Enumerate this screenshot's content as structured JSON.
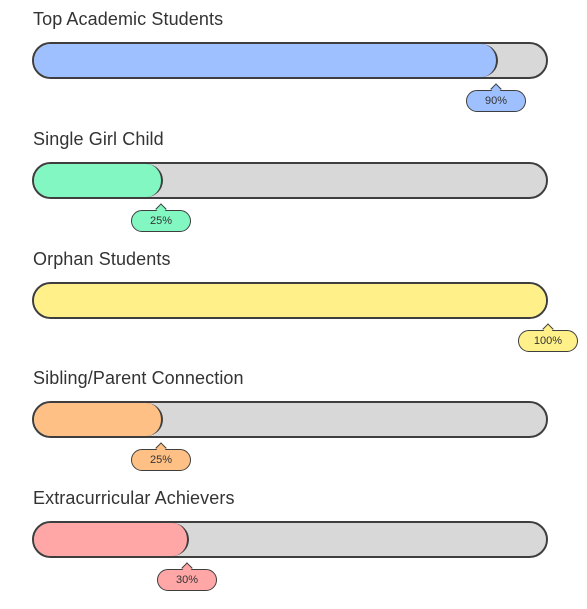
{
  "chart_data": {
    "type": "bar",
    "orientation": "horizontal-progress",
    "categories": [
      "Top Academic Students",
      "Single Girl Child",
      "Orphan Students",
      "Sibling/Parent Connection",
      "Extracurricular Achievers"
    ],
    "values": [
      90,
      25,
      100,
      25,
      30
    ],
    "value_labels": [
      "90%",
      "25%",
      "100%",
      "25%",
      "30%"
    ],
    "xlim": [
      0,
      100
    ],
    "colors": [
      "#9ec0ff",
      "#82f7c2",
      "#fff08a",
      "#ffc085",
      "#ffa6a6"
    ],
    "track_color": "#d8d8d8",
    "grid": false
  }
}
